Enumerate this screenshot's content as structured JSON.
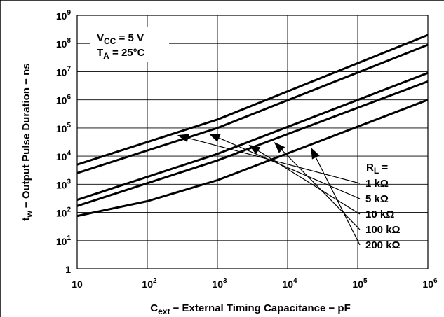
{
  "chart_data": {
    "type": "line",
    "x_scale": "log",
    "y_scale": "log",
    "xlim": [
      10,
      1000000
    ],
    "ylim": [
      1,
      1000000000
    ],
    "grid": true,
    "xlabel": {
      "main": "C",
      "sub": "ext",
      "rest": " − External Timing Capacitance − pF"
    },
    "ylabel": {
      "main": "t",
      "sub": "w",
      "rest": " − Output Pulse Duration − ns"
    },
    "x_ticks": [
      {
        "base": "10",
        "exp": ""
      },
      {
        "base": "10",
        "exp": "2"
      },
      {
        "base": "10",
        "exp": "3"
      },
      {
        "base": "10",
        "exp": "4"
      },
      {
        "base": "10",
        "exp": "5"
      },
      {
        "base": "10",
        "exp": "6"
      }
    ],
    "y_ticks": [
      {
        "base": "1",
        "exp": ""
      },
      {
        "base": "10",
        "exp": "1"
      },
      {
        "base": "10",
        "exp": "2"
      },
      {
        "base": "10",
        "exp": "3"
      },
      {
        "base": "10",
        "exp": "4"
      },
      {
        "base": "10",
        "exp": "5"
      },
      {
        "base": "10",
        "exp": "6"
      },
      {
        "base": "10",
        "exp": "7"
      },
      {
        "base": "10",
        "exp": "8"
      },
      {
        "base": "10",
        "exp": "9"
      }
    ],
    "conditions": [
      {
        "main": "V",
        "sub": "CC",
        "rest": " = 5 V"
      },
      {
        "main": "T",
        "sub": "A",
        "rest": " = 25°C"
      }
    ],
    "legend_header": {
      "main": "R",
      "sub": "L",
      "rest": " ="
    },
    "series": [
      {
        "name": "1 kΩ",
        "x": [
          10,
          1000,
          1000000
        ],
        "y": [
          5000,
          200000,
          200000000
        ]
      },
      {
        "name": "5 kΩ",
        "x": [
          10,
          1000,
          1000000
        ],
        "y": [
          2500,
          100000,
          90000000
        ]
      },
      {
        "name": "10 kΩ",
        "x": [
          10,
          1000,
          1000000
        ],
        "y": [
          280,
          12000,
          9000000
        ]
      },
      {
        "name": "100 kΩ",
        "x": [
          10,
          1000,
          1000000
        ],
        "y": [
          170,
          7000,
          4500000
        ]
      },
      {
        "name": "200 kΩ",
        "x": [
          10,
          100,
          1000,
          1000000
        ],
        "y": [
          75,
          250,
          1400,
          1000000
        ]
      }
    ],
    "callouts": [
      {
        "series": "1 kΩ",
        "x": 250,
        "label": "1 kΩ"
      },
      {
        "series": "5 kΩ",
        "x": 700,
        "label": "5 kΩ"
      },
      {
        "series": "10 kΩ",
        "x": 2600,
        "label": "10 kΩ"
      },
      {
        "series": "100 kΩ",
        "x": 6000,
        "label": "100 kΩ"
      },
      {
        "series": "200 kΩ",
        "x": 20000,
        "label": "200 kΩ"
      }
    ]
  }
}
